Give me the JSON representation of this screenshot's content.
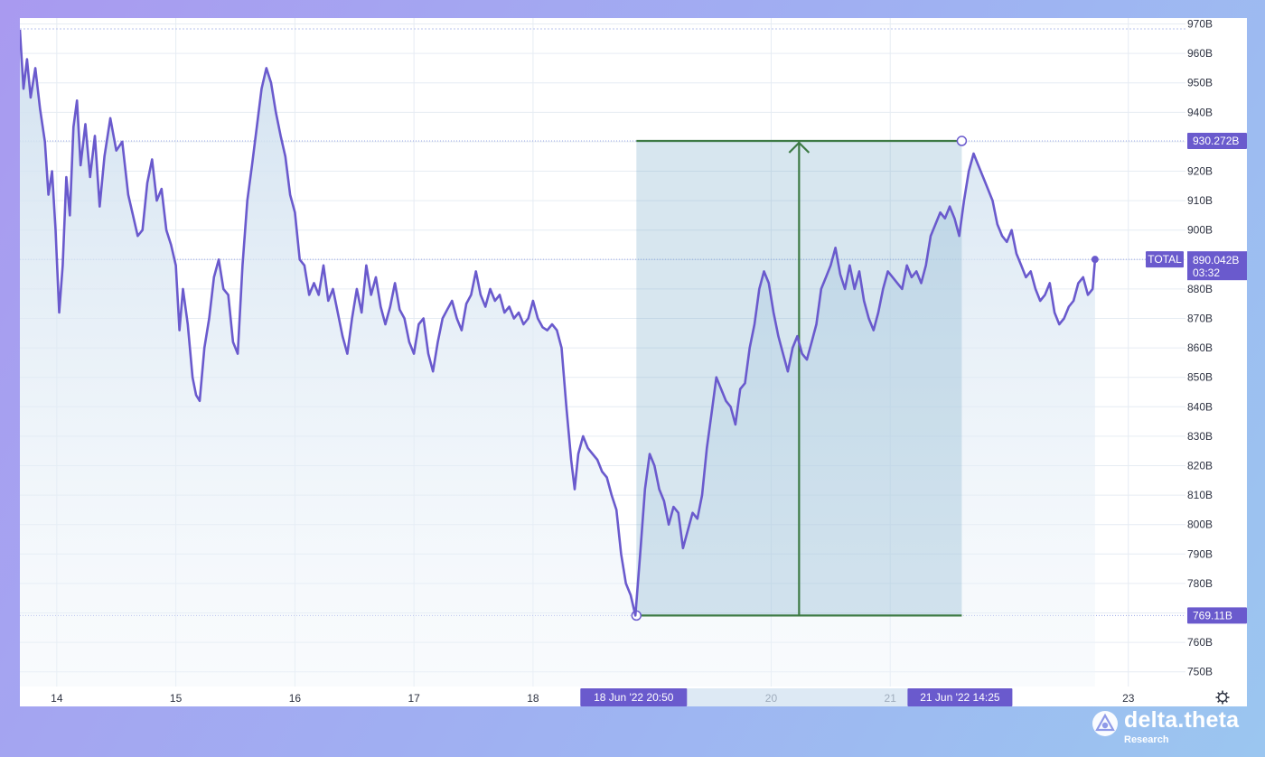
{
  "chart_data": {
    "type": "area",
    "y_unit_suffix": "B",
    "ylim": [
      745,
      972
    ],
    "y_ticks": [
      "970B",
      "960B",
      "950B",
      "940B",
      "930B",
      "920B",
      "910B",
      "900B",
      "890B",
      "880B",
      "870B",
      "860B",
      "850B",
      "840B",
      "830B",
      "820B",
      "810B",
      "800B",
      "790B",
      "780B",
      "770B",
      "760B",
      "750B"
    ],
    "x_ticks": [
      {
        "label": "14",
        "day": 14
      },
      {
        "label": "15",
        "day": 15
      },
      {
        "label": "16",
        "day": 16
      },
      {
        "label": "17",
        "day": 17
      },
      {
        "label": "18",
        "day": 18
      },
      {
        "label": "20",
        "day": 20
      },
      {
        "label": "21",
        "day": 21
      },
      {
        "label": "23",
        "day": 23
      }
    ],
    "xlim_days": [
      13.69,
      23.48
    ],
    "series": [
      {
        "name": "TOTAL",
        "color": "#6a5acd",
        "points": [
          [
            13.69,
            968
          ],
          [
            13.72,
            948
          ],
          [
            13.75,
            958
          ],
          [
            13.78,
            945
          ],
          [
            13.82,
            955
          ],
          [
            13.86,
            941
          ],
          [
            13.9,
            930
          ],
          [
            13.93,
            912
          ],
          [
            13.96,
            920
          ],
          [
            13.99,
            900
          ],
          [
            14.02,
            872
          ],
          [
            14.05,
            888
          ],
          [
            14.08,
            918
          ],
          [
            14.11,
            905
          ],
          [
            14.14,
            935
          ],
          [
            14.17,
            944
          ],
          [
            14.2,
            922
          ],
          [
            14.24,
            936
          ],
          [
            14.28,
            918
          ],
          [
            14.32,
            932
          ],
          [
            14.36,
            908
          ],
          [
            14.4,
            925
          ],
          [
            14.45,
            938
          ],
          [
            14.5,
            927
          ],
          [
            14.55,
            930
          ],
          [
            14.6,
            912
          ],
          [
            14.64,
            905
          ],
          [
            14.68,
            898
          ],
          [
            14.72,
            900
          ],
          [
            14.76,
            916
          ],
          [
            14.8,
            924
          ],
          [
            14.84,
            910
          ],
          [
            14.88,
            914
          ],
          [
            14.92,
            900
          ],
          [
            14.96,
            895
          ],
          [
            15.0,
            888
          ],
          [
            15.03,
            866
          ],
          [
            15.06,
            880
          ],
          [
            15.1,
            868
          ],
          [
            15.14,
            850
          ],
          [
            15.17,
            844
          ],
          [
            15.2,
            842
          ],
          [
            15.24,
            860
          ],
          [
            15.28,
            870
          ],
          [
            15.32,
            884
          ],
          [
            15.36,
            890
          ],
          [
            15.4,
            880
          ],
          [
            15.44,
            878
          ],
          [
            15.48,
            862
          ],
          [
            15.52,
            858
          ],
          [
            15.56,
            888
          ],
          [
            15.6,
            910
          ],
          [
            15.64,
            922
          ],
          [
            15.68,
            935
          ],
          [
            15.72,
            948
          ],
          [
            15.76,
            955
          ],
          [
            15.8,
            950
          ],
          [
            15.84,
            940
          ],
          [
            15.88,
            932
          ],
          [
            15.92,
            925
          ],
          [
            15.96,
            912
          ],
          [
            16.0,
            906
          ],
          [
            16.04,
            890
          ],
          [
            16.08,
            888
          ],
          [
            16.12,
            878
          ],
          [
            16.16,
            882
          ],
          [
            16.2,
            878
          ],
          [
            16.24,
            888
          ],
          [
            16.28,
            876
          ],
          [
            16.32,
            880
          ],
          [
            16.36,
            872
          ],
          [
            16.4,
            864
          ],
          [
            16.44,
            858
          ],
          [
            16.48,
            870
          ],
          [
            16.52,
            880
          ],
          [
            16.56,
            872
          ],
          [
            16.6,
            888
          ],
          [
            16.64,
            878
          ],
          [
            16.68,
            884
          ],
          [
            16.72,
            874
          ],
          [
            16.76,
            868
          ],
          [
            16.8,
            874
          ],
          [
            16.84,
            882
          ],
          [
            16.88,
            873
          ],
          [
            16.92,
            870
          ],
          [
            16.96,
            862
          ],
          [
            17.0,
            858
          ],
          [
            17.04,
            868
          ],
          [
            17.08,
            870
          ],
          [
            17.12,
            858
          ],
          [
            17.16,
            852
          ],
          [
            17.2,
            862
          ],
          [
            17.24,
            870
          ],
          [
            17.28,
            873
          ],
          [
            17.32,
            876
          ],
          [
            17.36,
            870
          ],
          [
            17.4,
            866
          ],
          [
            17.44,
            875
          ],
          [
            17.48,
            878
          ],
          [
            17.52,
            886
          ],
          [
            17.56,
            878
          ],
          [
            17.6,
            874
          ],
          [
            17.64,
            880
          ],
          [
            17.68,
            876
          ],
          [
            17.72,
            878
          ],
          [
            17.76,
            872
          ],
          [
            17.8,
            874
          ],
          [
            17.84,
            870
          ],
          [
            17.88,
            872
          ],
          [
            17.92,
            868
          ],
          [
            17.96,
            870
          ],
          [
            18.0,
            876
          ],
          [
            18.04,
            870
          ],
          [
            18.08,
            867
          ],
          [
            18.12,
            866
          ],
          [
            18.16,
            868
          ],
          [
            18.2,
            866
          ],
          [
            18.24,
            860
          ],
          [
            18.28,
            840
          ],
          [
            18.32,
            822
          ],
          [
            18.35,
            812
          ],
          [
            18.38,
            824
          ],
          [
            18.42,
            830
          ],
          [
            18.46,
            826
          ],
          [
            18.5,
            824
          ],
          [
            18.54,
            822
          ],
          [
            18.58,
            818
          ],
          [
            18.62,
            816
          ],
          [
            18.66,
            810
          ],
          [
            18.7,
            805
          ],
          [
            18.74,
            790
          ],
          [
            18.78,
            780
          ],
          [
            18.82,
            776
          ],
          [
            18.86,
            769.11
          ],
          [
            18.9,
            790
          ],
          [
            18.94,
            812
          ],
          [
            18.98,
            824
          ],
          [
            19.02,
            820
          ],
          [
            19.06,
            812
          ],
          [
            19.1,
            808
          ],
          [
            19.14,
            800
          ],
          [
            19.18,
            806
          ],
          [
            19.22,
            804
          ],
          [
            19.26,
            792
          ],
          [
            19.3,
            798
          ],
          [
            19.34,
            804
          ],
          [
            19.38,
            802
          ],
          [
            19.42,
            810
          ],
          [
            19.46,
            826
          ],
          [
            19.5,
            838
          ],
          [
            19.54,
            850
          ],
          [
            19.58,
            846
          ],
          [
            19.62,
            842
          ],
          [
            19.66,
            840
          ],
          [
            19.7,
            834
          ],
          [
            19.74,
            846
          ],
          [
            19.78,
            848
          ],
          [
            19.82,
            860
          ],
          [
            19.86,
            868
          ],
          [
            19.9,
            880
          ],
          [
            19.94,
            886
          ],
          [
            19.98,
            882
          ],
          [
            20.02,
            872
          ],
          [
            20.06,
            864
          ],
          [
            20.1,
            858
          ],
          [
            20.14,
            852
          ],
          [
            20.18,
            860
          ],
          [
            20.22,
            864
          ],
          [
            20.26,
            858
          ],
          [
            20.3,
            856
          ],
          [
            20.34,
            862
          ],
          [
            20.38,
            868
          ],
          [
            20.42,
            880
          ],
          [
            20.46,
            884
          ],
          [
            20.5,
            888
          ],
          [
            20.54,
            894
          ],
          [
            20.58,
            885
          ],
          [
            20.62,
            880
          ],
          [
            20.66,
            888
          ],
          [
            20.7,
            880
          ],
          [
            20.74,
            886
          ],
          [
            20.78,
            876
          ],
          [
            20.82,
            870
          ],
          [
            20.86,
            866
          ],
          [
            20.9,
            872
          ],
          [
            20.94,
            880
          ],
          [
            20.98,
            886
          ],
          [
            21.02,
            884
          ],
          [
            21.06,
            882
          ],
          [
            21.1,
            880
          ],
          [
            21.14,
            888
          ],
          [
            21.18,
            884
          ],
          [
            21.22,
            886
          ],
          [
            21.26,
            882
          ],
          [
            21.3,
            888
          ],
          [
            21.34,
            898
          ],
          [
            21.38,
            902
          ],
          [
            21.42,
            906
          ],
          [
            21.46,
            904
          ],
          [
            21.5,
            908
          ],
          [
            21.54,
            904
          ],
          [
            21.58,
            898
          ],
          [
            21.62,
            910
          ],
          [
            21.66,
            920
          ],
          [
            21.7,
            926
          ],
          [
            21.74,
            922
          ],
          [
            21.78,
            918
          ],
          [
            21.82,
            914
          ],
          [
            21.86,
            910
          ],
          [
            21.9,
            902
          ],
          [
            21.94,
            898
          ],
          [
            21.98,
            896
          ],
          [
            22.02,
            900
          ],
          [
            22.06,
            892
          ],
          [
            22.1,
            888
          ],
          [
            22.14,
            884
          ],
          [
            22.18,
            886
          ],
          [
            22.22,
            880
          ],
          [
            22.26,
            876
          ],
          [
            22.3,
            878
          ],
          [
            22.34,
            882
          ],
          [
            22.38,
            872
          ],
          [
            22.42,
            868
          ],
          [
            22.46,
            870
          ],
          [
            22.5,
            874
          ],
          [
            22.54,
            876
          ],
          [
            22.58,
            882
          ],
          [
            22.62,
            884
          ],
          [
            22.66,
            878
          ],
          [
            22.7,
            880
          ],
          [
            22.72,
            890.042
          ]
        ]
      }
    ],
    "last_value_badge": {
      "series_label": "TOTAL",
      "value": "890.042B",
      "countdown": "03:32"
    },
    "measure_range": {
      "start_label": "18 Jun '22   20:50",
      "end_label": "21 Jun '22   14:25",
      "start_day": 18.868,
      "end_day": 21.601,
      "low_value": 769.11,
      "high_value": 930.272,
      "low_label": "769.11B",
      "high_label": "930.272B",
      "fill_color": "#6fa6c7",
      "line_color": "#3d7a44"
    },
    "grid": true
  },
  "brand": {
    "name": "delta.theta",
    "sub": "Research"
  },
  "colors": {
    "line": "#6a5acd",
    "badge": "#6a5acd",
    "measure": "#3d7a44",
    "grid": "#e6ecf3"
  }
}
